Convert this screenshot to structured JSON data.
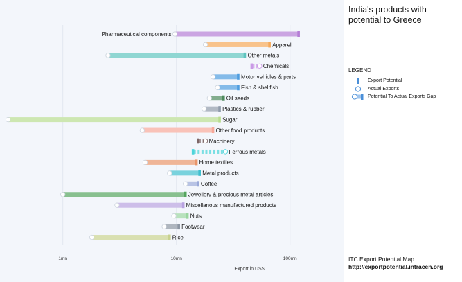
{
  "title": "India's products with potential to Greece",
  "legend": {
    "title": "LEGEND",
    "items": [
      "Export Potential",
      "Actual Exports",
      "Potential To Actual Exports Gap"
    ]
  },
  "footer": {
    "line1": "ITC Export Potential Map",
    "line2": "http://exportpotential.intracen.org"
  },
  "chart_data": {
    "type": "dumbbell",
    "xlabel": "Export in US$",
    "x_scale": "log",
    "x_ticks": [
      {
        "value": 1000000,
        "label": "1mn"
      },
      {
        "value": 10000000,
        "label": "10mn"
      },
      {
        "value": 100000000,
        "label": "100mn"
      }
    ],
    "xlim": [
      280000,
      300000000
    ],
    "rows": [
      {
        "label": "Pharmaceutical components",
        "actual": 9700000,
        "potential": 119000000,
        "color": "#b57ed6",
        "style": "solid"
      },
      {
        "label": "Apparel",
        "actual": 18000000,
        "potential": 66000000,
        "color": "#f5a95a",
        "style": "solid"
      },
      {
        "label": "Other metals",
        "actual": 2500000,
        "potential": 40000000,
        "color": "#5fc4bf",
        "style": "solid"
      },
      {
        "label": "Chemicals",
        "actual": 54000000,
        "potential": 46000000,
        "color": "#c99ae6",
        "style": "dashed"
      },
      {
        "label": "Motor vehicles & parts",
        "actual": 21000000,
        "potential": 35000000,
        "color": "#4f9ee0",
        "style": "solid"
      },
      {
        "label": "Fish & shellfish",
        "actual": 23000000,
        "potential": 35000000,
        "color": "#4f9ee0",
        "style": "solid"
      },
      {
        "label": "Oil seeds",
        "actual": 19500000,
        "potential": 26000000,
        "color": "#4e8a5c",
        "style": "solid"
      },
      {
        "label": "Plastics & rubber",
        "actual": 17500000,
        "potential": 24000000,
        "color": "#8f9bab",
        "style": "solid"
      },
      {
        "label": "Sugar",
        "actual": 330000,
        "potential": 24000000,
        "color": "#b8dc8f",
        "style": "solid"
      },
      {
        "label": "Other food products",
        "actual": 5000000,
        "potential": 21000000,
        "color": "#f6a899",
        "style": "solid"
      },
      {
        "label": "Machinery",
        "actual": 18000000,
        "potential": 15500000,
        "color": "#7d6666",
        "style": "dashed"
      },
      {
        "label": "Ferrous metals",
        "actual": 27000000,
        "potential": 14000000,
        "color": "#4dd4da",
        "style": "dashed"
      },
      {
        "label": "Home textiles",
        "actual": 5300000,
        "potential": 15000000,
        "color": "#e8956a",
        "style": "solid"
      },
      {
        "label": "Metal products",
        "actual": 8700000,
        "potential": 16000000,
        "color": "#3fbfcf",
        "style": "solid"
      },
      {
        "label": "Coffee",
        "actual": 12000000,
        "potential": 15500000,
        "color": "#9aa9d8",
        "style": "solid"
      },
      {
        "label": "Jewellery & precious metal articles",
        "actual": 1000000,
        "potential": 12000000,
        "color": "#55a55f",
        "style": "solid"
      },
      {
        "label": "Miscellanous manufactured products",
        "actual": 3000000,
        "potential": 11500000,
        "color": "#b8a2e0",
        "style": "solid"
      },
      {
        "label": "Nuts",
        "actual": 9500000,
        "potential": 12500000,
        "color": "#9ad6a0",
        "style": "solid"
      },
      {
        "label": "Footwear",
        "actual": 7800000,
        "potential": 10500000,
        "color": "#8c96a3",
        "style": "solid"
      },
      {
        "label": "Rice",
        "actual": 1800000,
        "potential": 8700000,
        "color": "#c8d28f",
        "style": "solid"
      }
    ]
  }
}
